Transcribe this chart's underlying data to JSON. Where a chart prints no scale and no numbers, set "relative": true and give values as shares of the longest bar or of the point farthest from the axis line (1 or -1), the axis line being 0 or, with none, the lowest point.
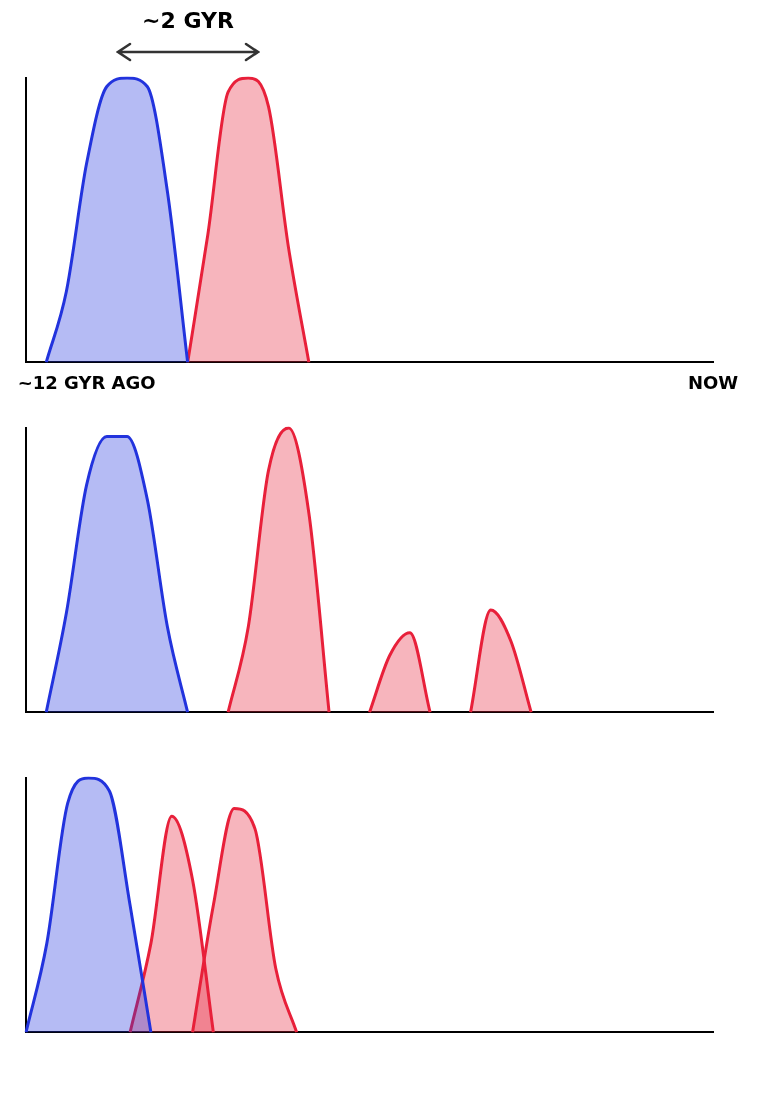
{
  "chart_data": [
    {
      "type": "area",
      "relative": true,
      "annotations": [
        "~2 GYR"
      ],
      "categories": [
        null,
        null,
        null,
        "~12 GYR AGO",
        null,
        null,
        null,
        null,
        null,
        null,
        null,
        null,
        null,
        null,
        null,
        null,
        null,
        null,
        null,
        null,
        null,
        null,
        null,
        null,
        null,
        null,
        null,
        null,
        null,
        null,
        null,
        null,
        null,
        null,
        "NOW"
      ],
      "series": [
        {
          "color": "#2233dd",
          "values": [
            null,
            0,
            0.25,
            0.7,
            0.97,
            1,
            0.97,
            0.6,
            0,
            null,
            null,
            null,
            null,
            null,
            null,
            null,
            null,
            null,
            null,
            null,
            null,
            null,
            null,
            null,
            null,
            null,
            null,
            null,
            null,
            null,
            null,
            null,
            null,
            null,
            null
          ]
        },
        {
          "color": "#e8203a",
          "values": [
            null,
            null,
            null,
            null,
            null,
            null,
            null,
            null,
            0,
            0.45,
            0.95,
            1,
            0.9,
            0.4,
            0,
            null,
            null,
            null,
            null,
            null,
            null,
            null,
            null,
            null,
            null,
            null,
            null,
            null,
            null,
            null,
            null,
            null,
            null,
            null,
            null
          ]
        }
      ]
    },
    {
      "type": "area",
      "relative": true,
      "categories": [
        null,
        null,
        null,
        null,
        null,
        null,
        null,
        null,
        null,
        null,
        null,
        null,
        null,
        null,
        null,
        null,
        null,
        null,
        null,
        null,
        null,
        null,
        null,
        null,
        null,
        null,
        null,
        null,
        null,
        null,
        null,
        null,
        null,
        null,
        null
      ],
      "series": [
        {
          "color": "#2233dd",
          "values": [
            null,
            0,
            0.35,
            0.8,
            0.97,
            0.97,
            0.75,
            0.3,
            0,
            null,
            null,
            null,
            null,
            null,
            null,
            null,
            null,
            null,
            null,
            null,
            null,
            null,
            null,
            null,
            null,
            null,
            null,
            null,
            null,
            null,
            null,
            null,
            null,
            null,
            null
          ]
        },
        {
          "color": "#e8203a",
          "values": [
            null,
            null,
            null,
            null,
            null,
            null,
            null,
            null,
            null,
            null,
            0,
            0.3,
            0.85,
            1,
            0.7,
            0,
            null,
            null,
            null,
            null,
            null,
            null,
            null,
            null,
            null,
            null,
            null,
            null,
            null,
            null,
            null,
            null,
            null,
            null,
            null
          ]
        },
        {
          "color": "#e8203a",
          "values": [
            null,
            null,
            null,
            null,
            null,
            null,
            null,
            null,
            null,
            null,
            null,
            null,
            null,
            null,
            null,
            null,
            null,
            0,
            0.2,
            0.28,
            0,
            null,
            null,
            null,
            null,
            null,
            null,
            null,
            null,
            null,
            null,
            null,
            null,
            null,
            null
          ]
        },
        {
          "color": "#e8203a",
          "values": [
            null,
            null,
            null,
            null,
            null,
            null,
            null,
            null,
            null,
            null,
            null,
            null,
            null,
            null,
            null,
            null,
            null,
            null,
            null,
            null,
            null,
            null,
            0,
            0.36,
            0.25,
            0,
            null,
            null,
            null,
            null,
            null,
            null,
            null,
            null,
            null
          ]
        }
      ]
    },
    {
      "type": "area",
      "relative": true,
      "categories": [
        null,
        null,
        null,
        null,
        null,
        null,
        null,
        null,
        null,
        null,
        null,
        null,
        null,
        null,
        null,
        null,
        null,
        null,
        null,
        null,
        null,
        null,
        null,
        null,
        null,
        null,
        null,
        null,
        null,
        null,
        null,
        null,
        null,
        null
      ],
      "series": [
        {
          "color": "#2233dd",
          "values": [
            0,
            0.35,
            0.9,
            1,
            0.95,
            0.5,
            0,
            null,
            null,
            null,
            null,
            null,
            null,
            null,
            null,
            null,
            null,
            null,
            null,
            null,
            null,
            null,
            null,
            null,
            null,
            null,
            null,
            null,
            null,
            null,
            null,
            null,
            null,
            null
          ]
        },
        {
          "color": "#e8203a",
          "values": [
            null,
            null,
            null,
            null,
            null,
            0,
            0.35,
            0.85,
            0.6,
            0,
            null,
            null,
            null,
            null,
            null,
            null,
            null,
            null,
            null,
            null,
            null,
            null,
            null,
            null,
            null,
            null,
            null,
            null,
            null,
            null,
            null,
            null,
            null,
            null
          ]
        },
        {
          "color": "#e8203a",
          "values": [
            null,
            null,
            null,
            null,
            null,
            null,
            null,
            null,
            0,
            0.5,
            0.88,
            0.8,
            0.25,
            0,
            null,
            null,
            null,
            null,
            null,
            null,
            null,
            null,
            null,
            null,
            null,
            null,
            null,
            null,
            null,
            null,
            null,
            null,
            null,
            null
          ]
        }
      ]
    }
  ]
}
